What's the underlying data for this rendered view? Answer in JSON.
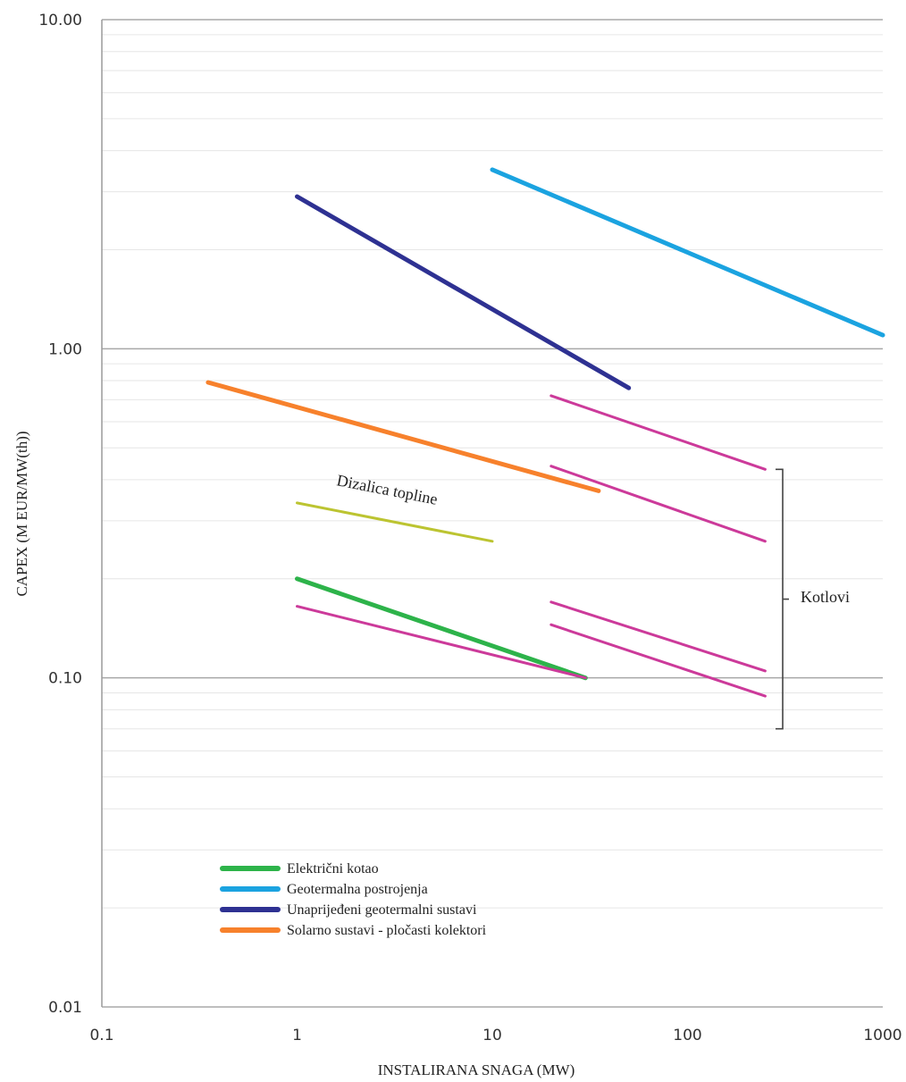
{
  "chart_data": {
    "type": "line",
    "xscale": "log",
    "yscale": "log",
    "xlim": [
      0.1,
      1000
    ],
    "ylim": [
      0.01,
      10
    ],
    "grid": true,
    "x_ticks": [
      "0.1",
      "1",
      "10",
      "100",
      "1000"
    ],
    "y_ticks": [
      "0.01",
      "0.10",
      "1.00",
      "10.00"
    ],
    "xlabel": "INSTALIRANA SNAGA (MW)",
    "ylabel": "CAPEX (M EUR/MW(th))",
    "legend_position": "bottom-left inside plot",
    "series": [
      {
        "name": "Električni kotao",
        "color": "#2db34a",
        "width": 5,
        "x": [
          1,
          30
        ],
        "y": [
          0.2,
          0.1
        ]
      },
      {
        "name": "Geotermalna postrojenja",
        "color": "#1ba3e0",
        "width": 5,
        "x": [
          10,
          1000
        ],
        "y": [
          3.5,
          1.1
        ]
      },
      {
        "name": "Unaprijeđeni geotermalni sustavi",
        "color": "#2e3192",
        "width": 5,
        "x": [
          1,
          50
        ],
        "y": [
          2.9,
          0.76
        ]
      },
      {
        "name": "Solarno sustavi - pločasti kolektori",
        "color": "#f7812c",
        "width": 5,
        "x": [
          0.35,
          35
        ],
        "y": [
          0.79,
          0.37
        ]
      },
      {
        "name": "",
        "label": "Dizalica topline",
        "color": "#bcc431",
        "width": 3,
        "x": [
          1,
          10
        ],
        "y": [
          0.34,
          0.26
        ]
      },
      {
        "name": "",
        "group": "Kotlovi",
        "color": "#cc3a9a",
        "width": 3,
        "x": [
          1,
          30
        ],
        "y": [
          0.165,
          0.1
        ]
      },
      {
        "name": "",
        "group": "Kotlovi",
        "color": "#cc3a9a",
        "width": 3,
        "x": [
          20,
          250
        ],
        "y": [
          0.72,
          0.43
        ]
      },
      {
        "name": "",
        "group": "Kotlovi",
        "color": "#cc3a9a",
        "width": 3,
        "x": [
          20,
          250
        ],
        "y": [
          0.44,
          0.26
        ]
      },
      {
        "name": "",
        "group": "Kotlovi",
        "color": "#cc3a9a",
        "width": 3,
        "x": [
          20,
          250
        ],
        "y": [
          0.17,
          0.105
        ]
      },
      {
        "name": "",
        "group": "Kotlovi",
        "color": "#cc3a9a",
        "width": 3,
        "x": [
          20,
          250
        ],
        "y": [
          0.145,
          0.088
        ]
      }
    ],
    "annotations": {
      "heat_pump_label": "Dizalica topline",
      "boilers_label": "Kotlovi",
      "boilers_bracket_y": [
        0.07,
        0.43
      ]
    },
    "legend": [
      {
        "label": "Električni kotao",
        "color": "#2db34a"
      },
      {
        "label": "Geotermalna postrojenja",
        "color": "#1ba3e0"
      },
      {
        "label": "Unaprijeđeni geotermalni sustavi",
        "color": "#2e3192"
      },
      {
        "label": "Solarno sustavi - pločasti kolektori",
        "color": "#f7812c"
      }
    ]
  }
}
